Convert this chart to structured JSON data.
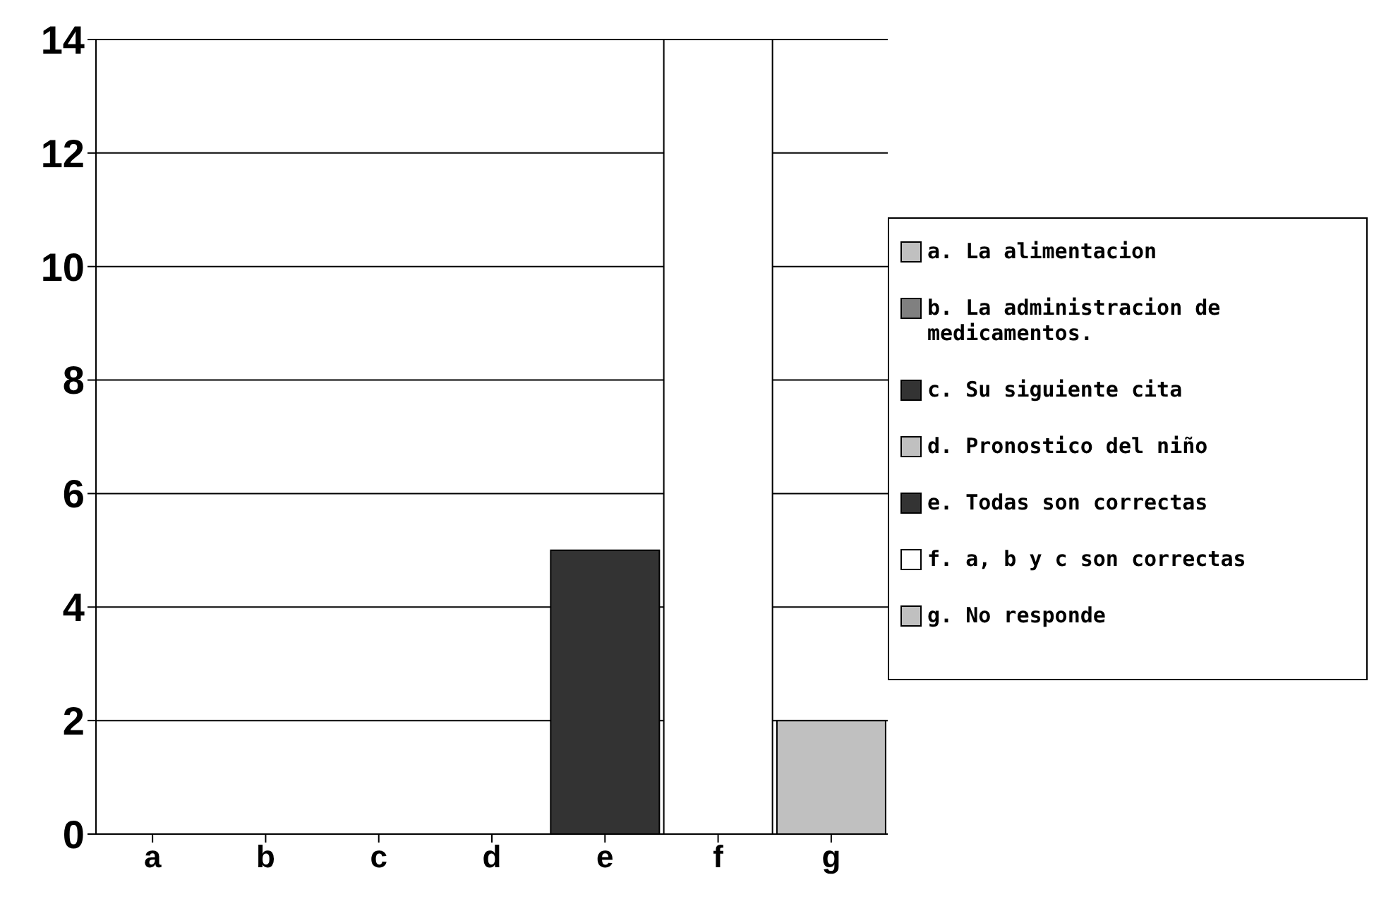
{
  "chart_data": {
    "type": "bar",
    "stacked": true,
    "categories": [
      "a",
      "b",
      "c",
      "d",
      "e",
      "f",
      "g"
    ],
    "series": [
      {
        "name": "a. La alimentacion",
        "color": "#c0c0c0",
        "values": [
          0,
          null,
          null,
          null,
          null,
          null,
          null
        ]
      },
      {
        "name": "b. La administracion de medicamentos.",
        "color": "#808080",
        "values": [
          null,
          0,
          null,
          null,
          null,
          null,
          null
        ]
      },
      {
        "name": "c. Su siguiente cita",
        "color": "#333333",
        "values": [
          null,
          null,
          0,
          null,
          null,
          null,
          null
        ]
      },
      {
        "name": "d. Pronostico del niño",
        "color": "#c0c0c0",
        "values": [
          null,
          null,
          null,
          0,
          null,
          null,
          null
        ]
      },
      {
        "name": "e. Todas son correctas",
        "color": "#333333",
        "values": [
          null,
          null,
          null,
          null,
          5,
          null,
          null
        ]
      },
      {
        "name": "f. a, b y c son correctas",
        "color": "#ffffff",
        "values": [
          null,
          null,
          null,
          null,
          null,
          14,
          null
        ]
      },
      {
        "name": "g. No responde",
        "color": "#c0c0c0",
        "values": [
          null,
          null,
          null,
          null,
          null,
          null,
          2
        ]
      }
    ],
    "ylim": [
      0,
      14
    ],
    "yticks": [
      0,
      2,
      4,
      6,
      8,
      10,
      12,
      14
    ],
    "grid": "y",
    "legend": "right"
  }
}
